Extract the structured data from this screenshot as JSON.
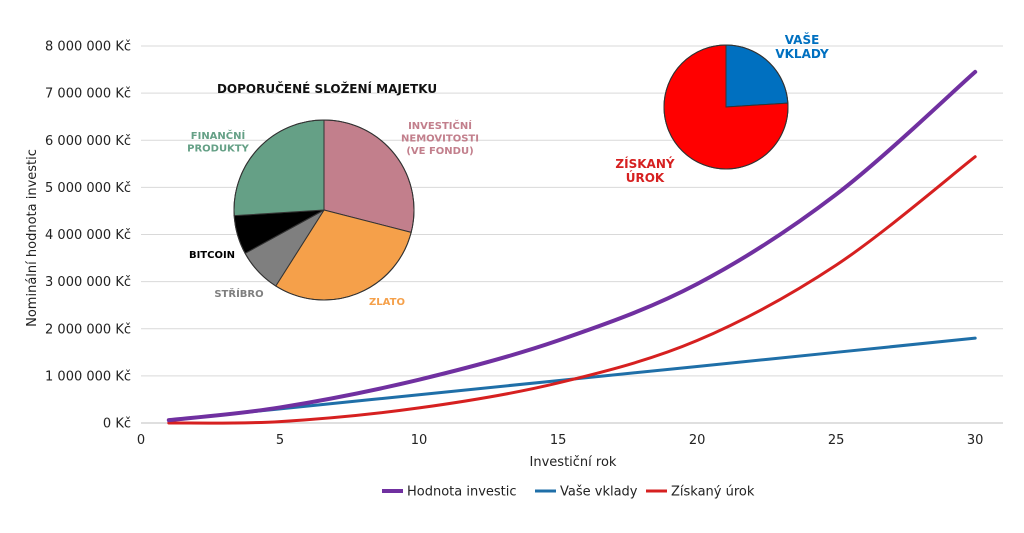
{
  "chart_data": [
    {
      "type": "line",
      "xlabel": "Investiční rok",
      "ylabel": "Nominální hodnota investic",
      "xlim": [
        0,
        31
      ],
      "ylim": [
        0,
        8000000
      ],
      "xticks": [
        "0",
        "5",
        "10",
        "15",
        "20",
        "25",
        "30"
      ],
      "yticks": [
        "0 Kč",
        "1 000 000 Kč",
        "2 000 000 Kč",
        "3 000 000 Kč",
        "4 000 000 Kč",
        "5 000 000 Kč",
        "6 000 000 Kč",
        "7 000 000 Kč",
        "8 000 000 Kč"
      ],
      "grid": "horizontal",
      "legend_position": "bottom",
      "x": [
        1,
        5,
        10,
        15,
        20,
        25,
        30
      ],
      "series": [
        {
          "name": "Hodnota investic",
          "color": "#7030A0",
          "values": [
            60000,
            330000,
            920000,
            1750000,
            2950000,
            4850000,
            7450000
          ]
        },
        {
          "name": "Vaše vklady",
          "color": "#1F6FA8",
          "values": [
            60000,
            300000,
            600000,
            900000,
            1200000,
            1500000,
            1800000
          ]
        },
        {
          "name": "Získaný úrok",
          "color": "#D62020",
          "values": [
            0,
            30000,
            320000,
            850000,
            1750000,
            3350000,
            5650000
          ]
        }
      ]
    },
    {
      "type": "pie",
      "title": "DOPORUČENÉ SLOŽENÍ MAJETKU",
      "slices": [
        {
          "label": "INVESTIČNÍ NEMOVITOSTI (VE FONDU)",
          "value": 29,
          "color": "#C27F8C",
          "label_color": "#C27F8C"
        },
        {
          "label": "ZLATO",
          "value": 30,
          "color": "#F5A04A",
          "label_color": "#F5A04A"
        },
        {
          "label": "STŘÍBRO",
          "value": 8,
          "color": "#7F7F7F",
          "label_color": "#7F7F7F"
        },
        {
          "label": "BITCOIN",
          "value": 7,
          "color": "#000000",
          "label_color": "#000000"
        },
        {
          "label": "FINANČNÍ PRODUKTY",
          "value": 26,
          "color": "#65A086",
          "label_color": "#65A086"
        }
      ]
    },
    {
      "type": "pie",
      "slices": [
        {
          "label": "VAŠE VKLADY",
          "value": 24,
          "color": "#0070C0",
          "label_color": "#0070C0"
        },
        {
          "label": "ZÍSKANÝ ÚROK",
          "value": 76,
          "color": "#FF0000",
          "label_color": "#D62020"
        }
      ]
    }
  ]
}
